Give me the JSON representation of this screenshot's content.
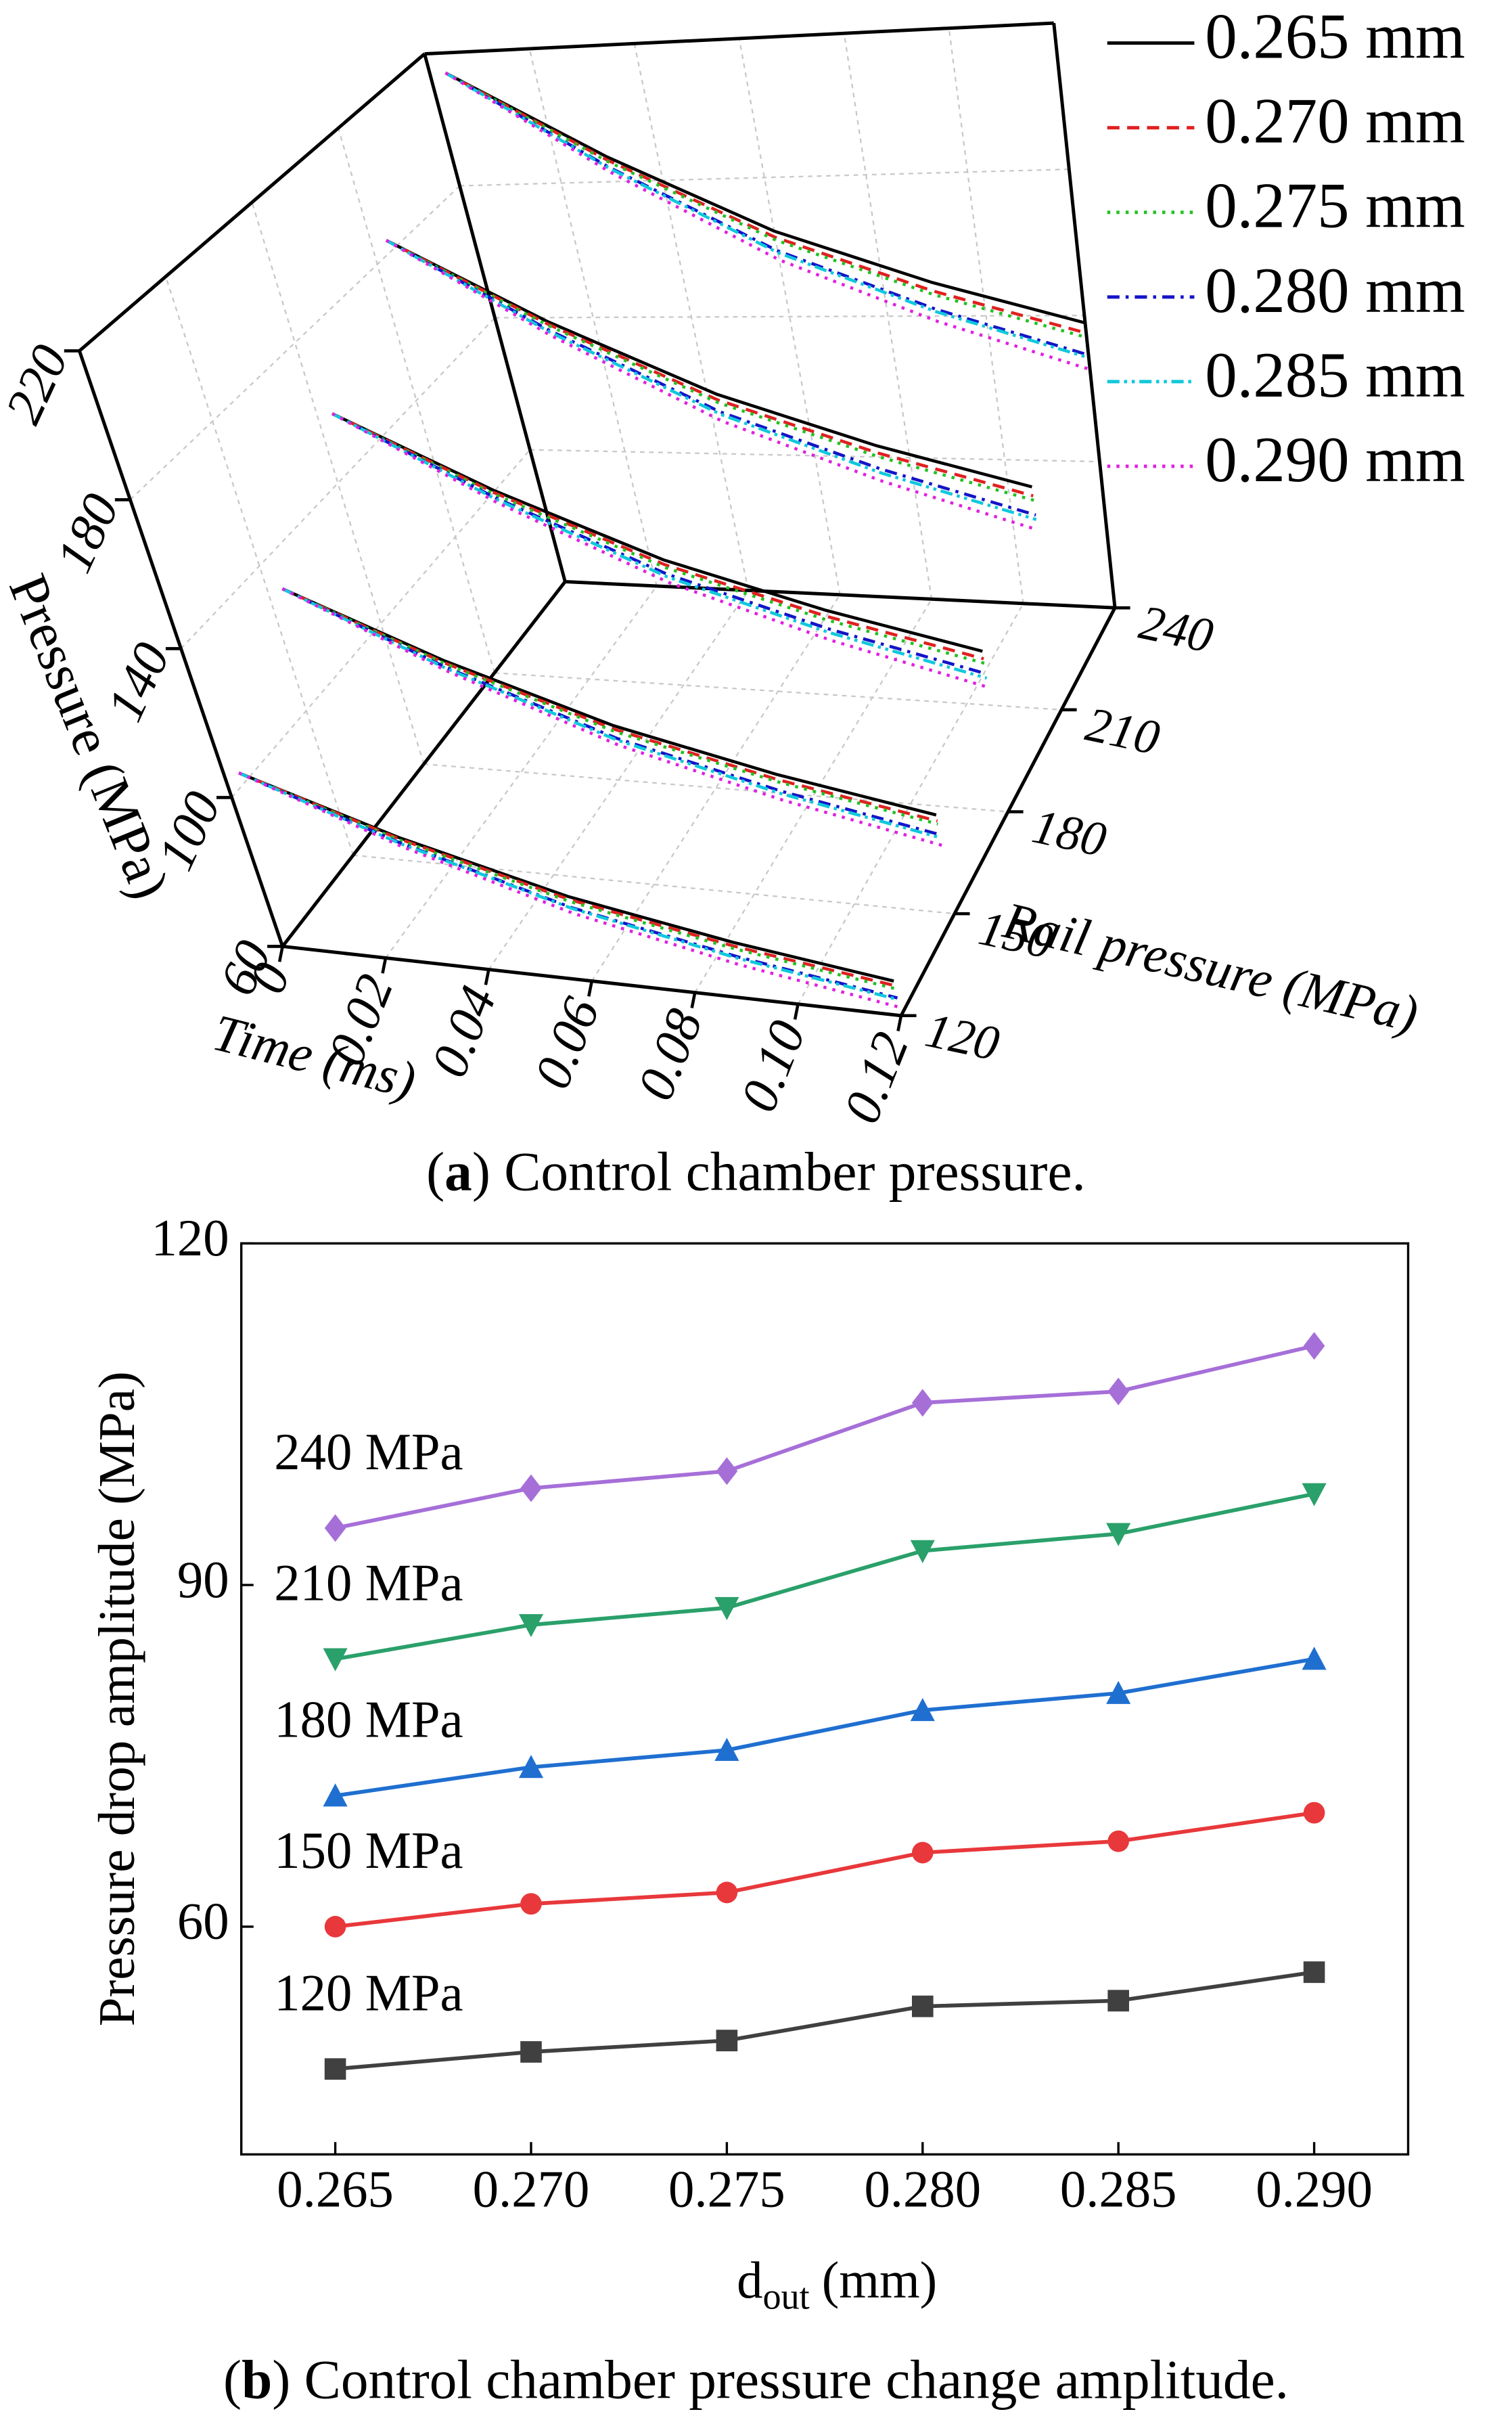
{
  "chart_data": [
    {
      "type": "line3d",
      "caption": {
        "open": "(",
        "label": "a",
        "text": ") Control chamber pressure."
      },
      "zlabel": "Pressure (MPa)",
      "xlabel": "Time (ms)",
      "ylabel": "Rail pressure (MPa)",
      "x": [
        0.003,
        0.03,
        0.06,
        0.09,
        0.12
      ],
      "depth": [
        120,
        150,
        180,
        210,
        240
      ],
      "xlim": [
        0,
        0.12
      ],
      "ylim": [
        120,
        240
      ],
      "zlim": [
        60,
        220
      ],
      "xticks": [
        0,
        0.02,
        0.04,
        0.06,
        0.08,
        {
          "value": 0.1,
          "label": "0.10"
        },
        0.12
      ],
      "yticks": [
        120,
        150,
        180,
        210,
        240
      ],
      "zticks": [
        60,
        100,
        140,
        180,
        220
      ],
      "grid": true,
      "legend": "top-right",
      "series": [
        {
          "name": "0.265 mm",
          "color": "#000000",
          "dash": "solid",
          "values": [
            [
              107,
              93.7,
              82.3,
              74.7,
              69
            ],
            [
              134,
              117.2,
              102.8,
              93.2,
              86
            ],
            [
              160,
              140,
              122.8,
              111.4,
              102.8
            ],
            [
              187,
              163.6,
              143.6,
              130.2,
              120.2
            ],
            [
              214,
              187.4,
              164.6,
              149.4,
              138
            ]
          ]
        },
        {
          "name": "0.270 mm",
          "color": "#e02020",
          "dash": "dash",
          "values": [
            [
              107,
              93.3,
              81.5,
              73.7,
              67.8
            ],
            [
              134,
              116.6,
              101.8,
              91.8,
              84.4
            ],
            [
              160,
              139.3,
              121.5,
              109.7,
              100.8
            ],
            [
              187,
              162.8,
              142,
              128.2,
              117.8
            ],
            [
              214,
              186.4,
              162.8,
              147,
              135.2
            ]
          ]
        },
        {
          "name": "0.275 mm",
          "color": "#22c022",
          "dash": "dot",
          "values": [
            [
              107,
              93,
              81,
              73,
              67
            ],
            [
              134,
              116.4,
              101.2,
              91.2,
              83.6
            ],
            [
              160,
              138.9,
              120.7,
              108.7,
              99.6
            ],
            [
              187,
              162.4,
              141.2,
              127.2,
              116.6
            ],
            [
              214,
              186,
              162,
              146,
              134
            ]
          ]
        },
        {
          "name": "0.280 mm",
          "color": "#1414c8",
          "dash": "dashdot",
          "values": [
            [
              107,
              92.2,
              79.4,
              71,
              64.6
            ],
            [
              134,
              115.4,
              99.4,
              88.8,
              80.8
            ],
            [
              160,
              137.9,
              118.9,
              106.3,
              96.8
            ],
            [
              187,
              161,
              138.6,
              123.8,
              112.6
            ],
            [
              214,
              184.3,
              158.9,
              141.9,
              129.2
            ]
          ]
        },
        {
          "name": "0.285 mm",
          "color": "#10c8dc",
          "dash": "dashdotdot",
          "values": [
            [
              107,
              92,
              79.2,
              70.6,
              64.2
            ],
            [
              134,
              115.1,
              98.9,
              88.1,
              80
            ],
            [
              160,
              137.5,
              118.1,
              105.3,
              95.6
            ],
            [
              187,
              160.5,
              137.9,
              122.7,
              111.4
            ],
            [
              214,
              184,
              158.4,
              141.2,
              128.4
            ]
          ]
        },
        {
          "name": "0.290 mm",
          "color": "#e020e0",
          "dash": "dot",
          "values": [
            [
              107,
              91.3,
              77.9,
              68.9,
              62.2
            ],
            [
              134,
              114.4,
              97.6,
              86.4,
              78
            ],
            [
              160,
              136.6,
              116.6,
              103.2,
              93.2
            ],
            [
              187,
              159.6,
              136,
              120.4,
              108.6
            ],
            [
              214,
              182.9,
              156.3,
              138.5,
              125.2
            ]
          ]
        }
      ]
    },
    {
      "type": "line",
      "caption": {
        "open": "(",
        "label": "b",
        "text": ") Control chamber pressure change amplitude."
      },
      "ylabel": "Pressure drop amplitude (MPa)",
      "xlabel": {
        "main": "d",
        "sub": "out",
        "unit": "(mm)"
      },
      "x": [
        0.265,
        0.27,
        0.275,
        0.28,
        0.285,
        0.29
      ],
      "xlim": [
        0.2626,
        0.2924
      ],
      "ylim": [
        40,
        120
      ],
      "xticks": [
        0.265,
        {
          "value": 0.27,
          "label": "0.270"
        },
        0.275,
        {
          "value": 0.28,
          "label": "0.280"
        },
        0.285,
        {
          "value": 0.29,
          "label": "0.290"
        }
      ],
      "yticks": [
        60,
        90,
        120
      ],
      "series": [
        {
          "name": "120 MPa",
          "color": "#404040",
          "marker": "square",
          "values": [
            47.5,
            49,
            50,
            53,
            53.5,
            56
          ]
        },
        {
          "name": "150 MPa",
          "color": "#e8383b",
          "marker": "circle",
          "values": [
            60,
            62,
            63,
            66.5,
            67.5,
            70
          ]
        },
        {
          "name": "180 MPa",
          "color": "#1f6fd0",
          "marker": "triangle-up",
          "values": [
            71.5,
            74,
            75.5,
            79,
            80.5,
            83.5
          ]
        },
        {
          "name": "210 MPa",
          "color": "#2aa06a",
          "marker": "triangle-down",
          "values": [
            83.5,
            86.5,
            88,
            93,
            94.5,
            98
          ]
        },
        {
          "name": "240 MPa",
          "color": "#a66fd8",
          "marker": "diamond",
          "values": [
            95,
            98.5,
            100,
            106,
            107,
            111
          ]
        }
      ]
    }
  ]
}
